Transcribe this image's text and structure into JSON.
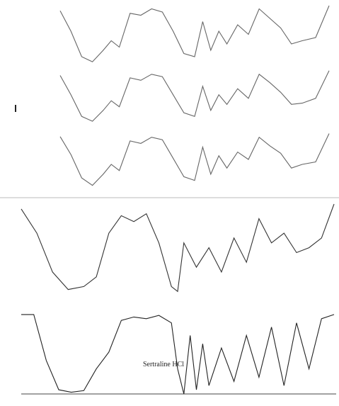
{
  "chart_data": [
    {
      "type": "line",
      "xlim": [
        0,
        100
      ],
      "ylim": [
        0,
        100
      ],
      "x": [
        0,
        4,
        8,
        12,
        16,
        19,
        22,
        26,
        30,
        34,
        38,
        42,
        46,
        50,
        53,
        56,
        59,
        62,
        66,
        70,
        74,
        78,
        82,
        86,
        90,
        95,
        100
      ],
      "series": [
        {
          "color": "#666666",
          "values": [
            92,
            60,
            20,
            12,
            30,
            45,
            35,
            88,
            85,
            95,
            90,
            60,
            25,
            20,
            75,
            30,
            60,
            40,
            70,
            55,
            95,
            80,
            65,
            40,
            45,
            50,
            100
          ]
        }
      ]
    },
    {
      "type": "line",
      "xlim": [
        0,
        100
      ],
      "ylim": [
        0,
        100
      ],
      "x": [
        0,
        4,
        8,
        12,
        16,
        19,
        22,
        26,
        30,
        34,
        38,
        42,
        46,
        50,
        53,
        56,
        59,
        62,
        66,
        70,
        74,
        78,
        82,
        86,
        90,
        95,
        100
      ],
      "series": [
        {
          "color": "#666666",
          "values": [
            90,
            58,
            22,
            14,
            32,
            48,
            38,
            86,
            82,
            92,
            88,
            58,
            28,
            22,
            72,
            32,
            58,
            42,
            68,
            52,
            92,
            78,
            62,
            42,
            44,
            52,
            98
          ]
        }
      ]
    },
    {
      "type": "line",
      "xlim": [
        0,
        100
      ],
      "ylim": [
        0,
        100
      ],
      "x": [
        0,
        4,
        8,
        12,
        16,
        19,
        22,
        26,
        30,
        34,
        38,
        42,
        46,
        50,
        53,
        56,
        59,
        62,
        66,
        70,
        74,
        78,
        82,
        86,
        90,
        95,
        100
      ],
      "series": [
        {
          "color": "#666666",
          "values": [
            91,
            62,
            24,
            12,
            30,
            46,
            36,
            84,
            80,
            90,
            86,
            56,
            26,
            20,
            74,
            30,
            60,
            40,
            66,
            54,
            90,
            76,
            64,
            40,
            46,
            50,
            96
          ]
        }
      ]
    },
    {
      "type": "line",
      "xlim": [
        0,
        100
      ],
      "ylim": [
        0,
        100
      ],
      "x": [
        0,
        5,
        10,
        15,
        20,
        24,
        28,
        32,
        36,
        40,
        44,
        48,
        50,
        52,
        56,
        60,
        64,
        68,
        72,
        76,
        80,
        84,
        88,
        92,
        96,
        100
      ],
      "series": [
        {
          "color": "#333333",
          "values": [
            95,
            70,
            30,
            12,
            15,
            25,
            70,
            88,
            82,
            90,
            60,
            15,
            10,
            60,
            35,
            55,
            30,
            65,
            40,
            85,
            60,
            70,
            50,
            55,
            65,
            100
          ]
        }
      ]
    },
    {
      "type": "line",
      "annotation": "Sertraline HCl",
      "xlim": [
        0,
        100
      ],
      "ylim": [
        0,
        100
      ],
      "x": [
        0,
        4,
        8,
        12,
        16,
        20,
        24,
        28,
        32,
        36,
        40,
        44,
        48,
        50,
        52,
        54,
        56,
        58,
        60,
        64,
        68,
        72,
        76,
        80,
        84,
        88,
        92,
        96,
        100
      ],
      "series": [
        {
          "color": "#222222",
          "values": [
            95,
            95,
            40,
            5,
            2,
            4,
            30,
            50,
            88,
            92,
            90,
            94,
            85,
            30,
            0,
            70,
            5,
            60,
            10,
            55,
            15,
            70,
            20,
            80,
            10,
            85,
            30,
            90,
            95
          ]
        }
      ]
    }
  ]
}
